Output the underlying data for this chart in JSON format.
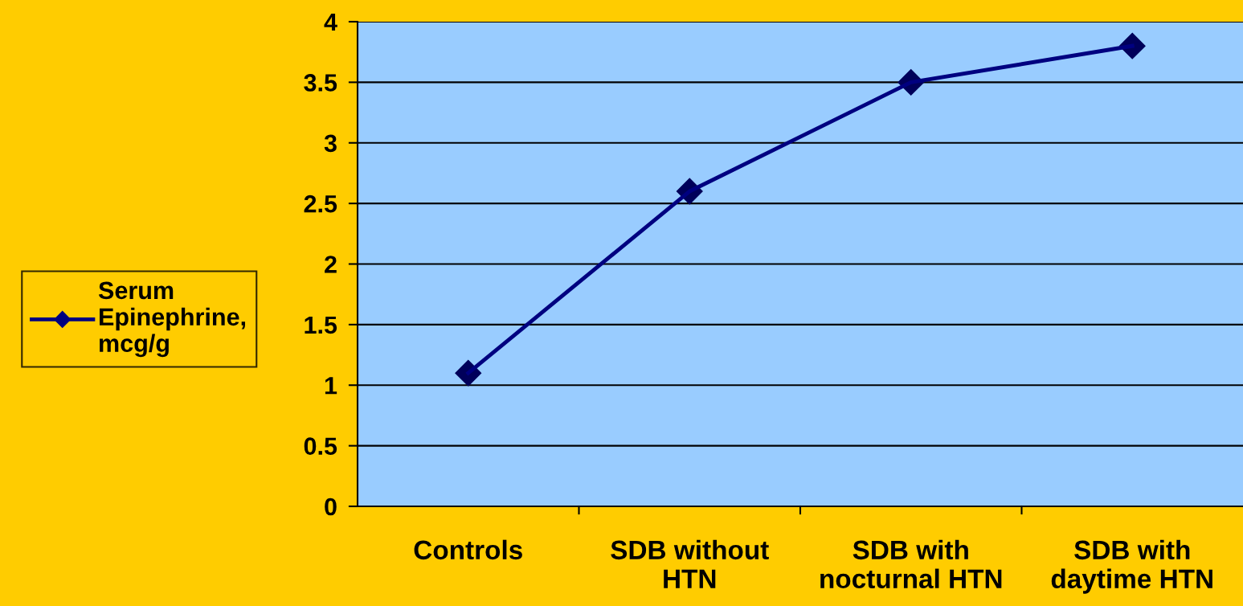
{
  "chart_data": {
    "type": "line",
    "categories": [
      "Controls",
      "SDB without\nHTN",
      "SDB with\nnocturnal HTN",
      "SDB with\ndaytime HTN"
    ],
    "series": [
      {
        "name": "Serum\nEpinephrine,\nmcg/g",
        "color": "#000080",
        "values": [
          1.1,
          2.6,
          3.5,
          3.8
        ]
      }
    ],
    "ylim": [
      0,
      4
    ],
    "yticks": [
      0,
      0.5,
      1,
      1.5,
      2,
      2.5,
      3,
      3.5,
      4
    ],
    "grid": "y",
    "legend": "left",
    "marker": "diamond",
    "line_style": "solid"
  }
}
